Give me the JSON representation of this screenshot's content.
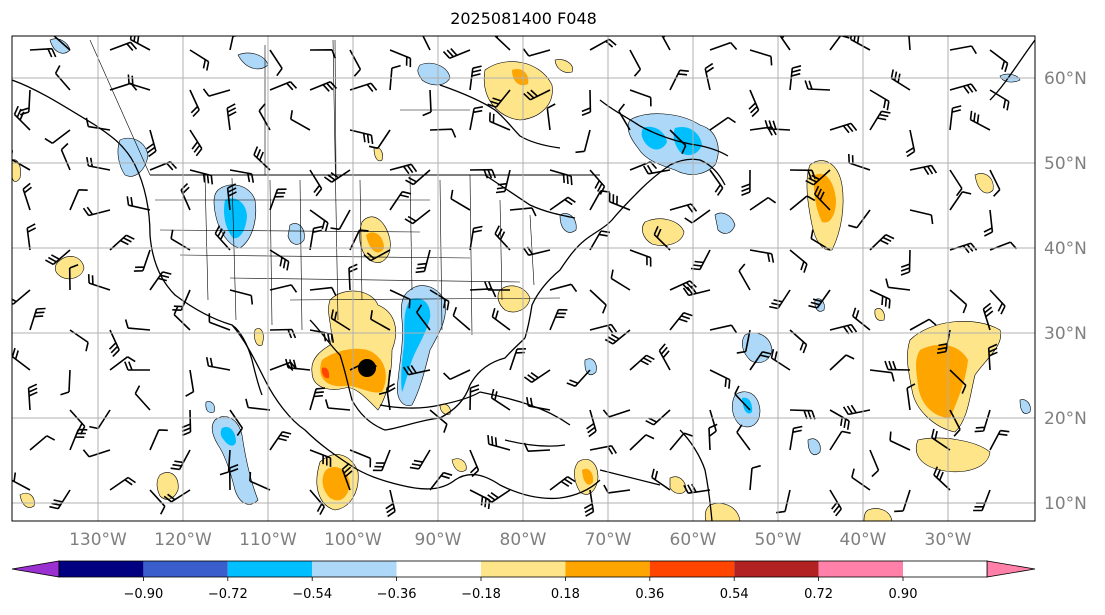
{
  "title": "2025081400 F048",
  "map": {
    "lon_labels": [
      "130°W",
      "120°W",
      "110°W",
      "100°W",
      "90°W",
      "80°W",
      "70°W",
      "60°W",
      "50°W",
      "40°W",
      "30°W"
    ],
    "lat_labels": [
      "60°N",
      "50°N",
      "40°N",
      "30°N",
      "20°N",
      "10°N"
    ],
    "lon_range": [
      -137,
      -17
    ],
    "lat_range": [
      8,
      65
    ],
    "grid": true,
    "marker": {
      "name": "point-marker",
      "lon": -98,
      "lat": 26
    }
  },
  "colorbar": {
    "ticks": [
      "−0.90",
      "−0.72",
      "−0.54",
      "−0.36",
      "−0.18",
      "0.18",
      "0.36",
      "0.54",
      "0.72",
      "0.90"
    ],
    "colors": [
      "#9b30d0",
      "#000080",
      "#3a5fcd",
      "#00bfff",
      "#add8f7",
      "#ffffff",
      "#fee58a",
      "#ffa500",
      "#ff4500",
      "#b22222",
      "#ff80a8"
    ],
    "extend": "both"
  },
  "colors": {
    "land_outline": "#000000",
    "grid": "#b0b0b0",
    "axis_label": "#7f7f7f"
  }
}
